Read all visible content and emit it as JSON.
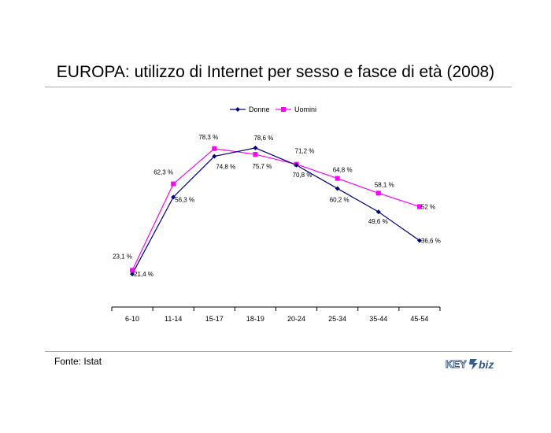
{
  "page": {
    "title": "EUROPA: utilizzo di Internet per sesso e fasce di età (2008)",
    "source": "Fonte: Istat",
    "logo_text": "KEY4biz"
  },
  "chart_data": {
    "type": "line",
    "title": "EUROPA: utilizzo di Internet per sesso e fasce di età (2008)",
    "xlabel": "",
    "ylabel": "",
    "categories": [
      "6-10",
      "11-14",
      "15-17",
      "18-19",
      "20-24",
      "25-34",
      "35-44",
      "45-54"
    ],
    "series": [
      {
        "name": "Donne",
        "color": "#000080",
        "marker": "diamond",
        "values": [
          21.4,
          56.3,
          74.8,
          78.6,
          70.8,
          60.2,
          49.6,
          36.6
        ],
        "labels": [
          "21,4 %",
          "56,3 %",
          "74,8 %",
          "78,6 %",
          "70,8 %",
          "60,2 %",
          "49,6 %",
          "36,6 %"
        ]
      },
      {
        "name": "Uomini",
        "color": "#ff00ff",
        "marker": "square",
        "values": [
          23.1,
          62.3,
          78.3,
          75.7,
          71.2,
          64.8,
          58.1,
          52
        ],
        "labels": [
          "23,1 %",
          "62,3 %",
          "78,3 %",
          "75,7 %",
          "71,2 %",
          "64,8 %",
          "58,1 %",
          "52 %"
        ]
      }
    ],
    "legend_position": "top",
    "grid": false
  }
}
